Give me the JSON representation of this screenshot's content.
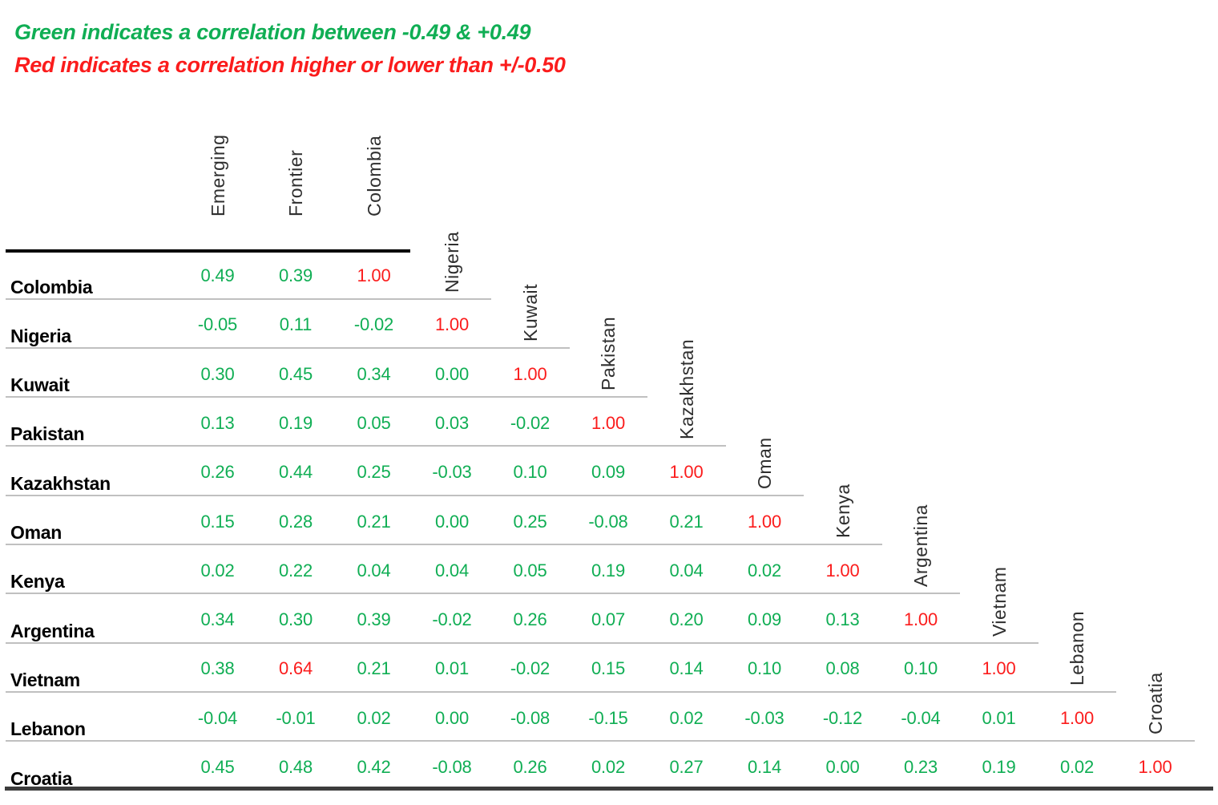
{
  "legend": {
    "green_note": "Green indicates a correlation between -0.49 & +0.49",
    "red_note": "Red indicates a correlation higher or lower than +/-0.50"
  },
  "colors": {
    "green": "#10ae54",
    "red": "#fb1c1c",
    "header_text": "#2f2f2f",
    "row_label": "#000000",
    "grid_line": "#c0c0c0",
    "top_rule": "#000000",
    "bottom_rule": "#3c3c3c",
    "background": "#ffffff"
  },
  "chart_data": {
    "type": "table",
    "subtype": "correlation-matrix-lower-triangle",
    "title": "",
    "legend_entries": [
      "Green indicates a correlation between -0.49 & +0.49",
      "Red indicates a correlation higher or lower than +/-0.50"
    ],
    "color_rule": {
      "green_abs_max": 0.49,
      "red_abs_min": 0.5
    },
    "columns": [
      "Emerging",
      "Frontier",
      "Colombia",
      "Nigeria",
      "Kuwait",
      "Pakistan",
      "Kazakhstan",
      "Oman",
      "Kenya",
      "Argentina",
      "Vietnam",
      "Lebanon",
      "Croatia"
    ],
    "rows": [
      {
        "label": "Colombia",
        "values": [
          "0.49",
          "0.39",
          "1.00"
        ]
      },
      {
        "label": "Nigeria",
        "values": [
          "-0.05",
          "0.11",
          "-0.02",
          "1.00"
        ]
      },
      {
        "label": "Kuwait",
        "values": [
          "0.30",
          "0.45",
          "0.34",
          "0.00",
          "1.00"
        ]
      },
      {
        "label": "Pakistan",
        "values": [
          "0.13",
          "0.19",
          "0.05",
          "0.03",
          "-0.02",
          "1.00"
        ]
      },
      {
        "label": "Kazakhstan",
        "values": [
          "0.26",
          "0.44",
          "0.25",
          "-0.03",
          "0.10",
          "0.09",
          "1.00"
        ]
      },
      {
        "label": "Oman",
        "values": [
          "0.15",
          "0.28",
          "0.21",
          "0.00",
          "0.25",
          "-0.08",
          "0.21",
          "1.00"
        ]
      },
      {
        "label": "Kenya",
        "values": [
          "0.02",
          "0.22",
          "0.04",
          "0.04",
          "0.05",
          "0.19",
          "0.04",
          "0.02",
          "1.00"
        ]
      },
      {
        "label": "Argentina",
        "values": [
          "0.34",
          "0.30",
          "0.39",
          "-0.02",
          "0.26",
          "0.07",
          "0.20",
          "0.09",
          "0.13",
          "1.00"
        ]
      },
      {
        "label": "Vietnam",
        "values": [
          "0.38",
          "0.64",
          "0.21",
          "0.01",
          "-0.02",
          "0.15",
          "0.14",
          "0.10",
          "0.08",
          "0.10",
          "1.00"
        ]
      },
      {
        "label": "Lebanon",
        "values": [
          "-0.04",
          "-0.01",
          "0.02",
          "0.00",
          "-0.08",
          "-0.15",
          "0.02",
          "-0.03",
          "-0.12",
          "-0.04",
          "0.01",
          "1.00"
        ]
      },
      {
        "label": "Croatia",
        "values": [
          "0.45",
          "0.48",
          "0.42",
          "-0.08",
          "0.26",
          "0.02",
          "0.27",
          "0.14",
          "0.00",
          "0.23",
          "0.19",
          "0.02",
          "1.00"
        ]
      }
    ]
  }
}
